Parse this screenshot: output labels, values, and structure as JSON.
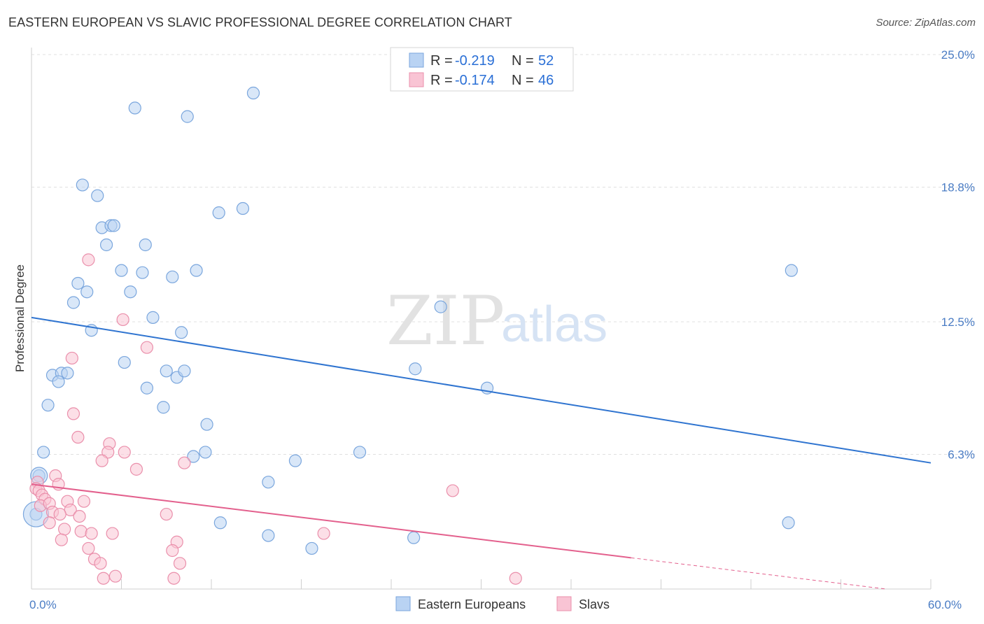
{
  "title": "EASTERN EUROPEAN VS SLAVIC PROFESSIONAL DEGREE CORRELATION CHART",
  "source": "Source: ZipAtlas.com",
  "watermark": {
    "zip": "ZIP",
    "atlas": "atlas"
  },
  "colors": {
    "blue_fill": "#b9d3f3",
    "blue_stroke": "#7aa6dd",
    "blue_line": "#2f74d0",
    "pink_fill": "#f9c4d4",
    "pink_stroke": "#ea8fab",
    "pink_line": "#e3608d",
    "grid": "#e0e0e0",
    "tick_text": "#4a7cc4"
  },
  "legend": {
    "rows": [
      {
        "r_label": "R =",
        "r_value": "-0.219",
        "n_label": "N =",
        "n_value": "52"
      },
      {
        "r_label": "R =",
        "r_value": "-0.174",
        "n_label": "N =",
        "n_value": "46"
      }
    ]
  },
  "chart_data": {
    "type": "scatter",
    "xlabel": "",
    "ylabel": "Professional Degree",
    "xlim": [
      0,
      60
    ],
    "ylim": [
      0,
      25.0
    ],
    "y_ticks": [
      {
        "value": 6.3,
        "label": "6.3%"
      },
      {
        "value": 12.5,
        "label": "12.5%"
      },
      {
        "value": 18.8,
        "label": "18.8%"
      },
      {
        "value": 25.0,
        "label": "25.0%"
      }
    ],
    "x_tick_labels": [
      {
        "value": 0,
        "label": "0.0%"
      },
      {
        "value": 60,
        "label": "60.0%"
      }
    ],
    "x_minor_ticks": [
      6,
      12,
      18,
      24,
      30,
      36,
      42,
      48,
      54,
      60
    ],
    "series": [
      {
        "name": "Eastern Europeans",
        "r": -0.219,
        "n": 52,
        "trend": {
          "x0": 0,
          "y0": 12.7,
          "x1": 60,
          "y1": 5.9,
          "dashed_from": null
        },
        "points": [
          [
            6.9,
            22.5
          ],
          [
            10.4,
            22.1
          ],
          [
            14.8,
            23.2
          ],
          [
            3.4,
            18.9
          ],
          [
            4.4,
            18.4
          ],
          [
            12.5,
            17.6
          ],
          [
            14.1,
            17.8
          ],
          [
            4.7,
            16.9
          ],
          [
            5.3,
            17.0
          ],
          [
            5.5,
            17.0
          ],
          [
            5.0,
            16.1
          ],
          [
            7.6,
            16.1
          ],
          [
            6.0,
            14.9
          ],
          [
            7.4,
            14.8
          ],
          [
            9.4,
            14.6
          ],
          [
            11.0,
            14.9
          ],
          [
            50.7,
            14.9
          ],
          [
            3.1,
            14.3
          ],
          [
            3.7,
            13.9
          ],
          [
            6.6,
            13.9
          ],
          [
            2.8,
            13.4
          ],
          [
            8.1,
            12.7
          ],
          [
            27.3,
            13.2
          ],
          [
            4.0,
            12.1
          ],
          [
            10.0,
            12.0
          ],
          [
            6.2,
            10.6
          ],
          [
            25.6,
            10.3
          ],
          [
            1.4,
            10.0
          ],
          [
            2.0,
            10.1
          ],
          [
            2.4,
            10.1
          ],
          [
            9.0,
            10.2
          ],
          [
            9.7,
            9.9
          ],
          [
            10.2,
            10.2
          ],
          [
            1.8,
            9.7
          ],
          [
            7.7,
            9.4
          ],
          [
            30.4,
            9.4
          ],
          [
            1.1,
            8.6
          ],
          [
            8.8,
            8.5
          ],
          [
            11.7,
            7.7
          ],
          [
            0.8,
            6.4
          ],
          [
            10.8,
            6.2
          ],
          [
            11.6,
            6.4
          ],
          [
            17.6,
            6.0
          ],
          [
            21.9,
            6.4
          ],
          [
            0.5,
            5.3
          ],
          [
            15.8,
            5.0
          ],
          [
            0.3,
            3.5
          ],
          [
            12.6,
            3.1
          ],
          [
            15.8,
            2.5
          ],
          [
            25.5,
            2.4
          ],
          [
            18.7,
            1.9
          ],
          [
            50.5,
            3.1
          ]
        ]
      },
      {
        "name": "Slavs",
        "r": -0.174,
        "n": 46,
        "trend": {
          "x0": 0,
          "y0": 4.9,
          "x1": 57,
          "y1": 0.0,
          "dashed_from": 40
        },
        "points": [
          [
            3.8,
            15.4
          ],
          [
            6.1,
            12.6
          ],
          [
            7.7,
            11.3
          ],
          [
            2.7,
            10.8
          ],
          [
            2.8,
            8.2
          ],
          [
            3.1,
            7.1
          ],
          [
            5.2,
            6.8
          ],
          [
            6.2,
            6.4
          ],
          [
            5.1,
            6.4
          ],
          [
            4.7,
            6.0
          ],
          [
            10.2,
            5.9
          ],
          [
            7.0,
            5.6
          ],
          [
            1.6,
            5.3
          ],
          [
            1.8,
            4.9
          ],
          [
            0.4,
            5.0
          ],
          [
            0.3,
            4.7
          ],
          [
            0.5,
            4.6
          ],
          [
            0.7,
            4.4
          ],
          [
            0.9,
            4.2
          ],
          [
            0.6,
            3.9
          ],
          [
            1.2,
            4.0
          ],
          [
            2.4,
            4.1
          ],
          [
            3.5,
            4.1
          ],
          [
            1.4,
            3.6
          ],
          [
            2.6,
            3.7
          ],
          [
            3.2,
            3.4
          ],
          [
            1.9,
            3.5
          ],
          [
            1.2,
            3.1
          ],
          [
            9.0,
            3.5
          ],
          [
            2.2,
            2.8
          ],
          [
            3.3,
            2.7
          ],
          [
            4.0,
            2.6
          ],
          [
            5.4,
            2.6
          ],
          [
            2.0,
            2.3
          ],
          [
            9.7,
            2.2
          ],
          [
            3.8,
            1.9
          ],
          [
            9.4,
            1.8
          ],
          [
            4.2,
            1.4
          ],
          [
            4.6,
            1.2
          ],
          [
            9.9,
            1.2
          ],
          [
            4.8,
            0.5
          ],
          [
            5.6,
            0.6
          ],
          [
            9.5,
            0.5
          ],
          [
            32.3,
            0.5
          ],
          [
            28.1,
            4.6
          ],
          [
            19.5,
            2.6
          ]
        ]
      }
    ],
    "legend_position": "top-center",
    "bottom_legend": [
      "Eastern Europeans",
      "Slavs"
    ],
    "grid": true
  }
}
